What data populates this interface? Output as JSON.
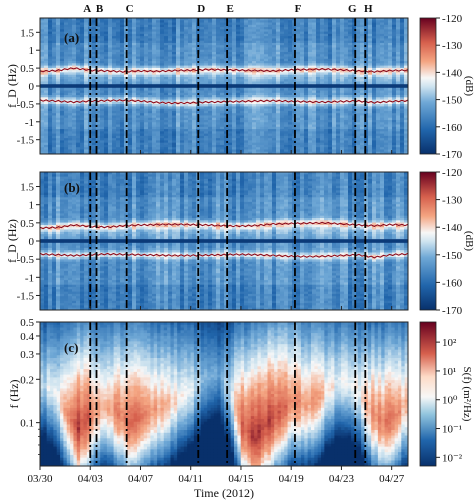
{
  "chart_data": [
    {
      "type": "heatmap",
      "panel_label": "(a)",
      "ylabel": "f_D (Hz)",
      "ylim": [
        -1.9,
        1.9
      ],
      "y_ticks": [
        "1.5",
        "1",
        "0.5",
        "0",
        "-0.5",
        "-1",
        "-1.5"
      ],
      "y_tick_values": [
        1.5,
        1,
        0.5,
        0,
        -0.5,
        -1,
        -1.5
      ],
      "colorbar": {
        "label": "(dB)",
        "range": [
          -170,
          -120
        ],
        "ticks": [
          "-120",
          "-130",
          "-140",
          "-150",
          "-160",
          "-170"
        ],
        "tick_values": [
          -120,
          -130,
          -140,
          -150,
          -160,
          -170
        ]
      },
      "bragg_positive_trace_hz": [
        0.41,
        0.43,
        0.5,
        0.44,
        0.42,
        0.4,
        0.42,
        0.41,
        0.43,
        0.44,
        0.46,
        0.45,
        0.44,
        0.43,
        0.42,
        0.45,
        0.46,
        0.47,
        0.45,
        0.42,
        0.4,
        0.43,
        0.44
      ],
      "bragg_negative_trace_hz": [
        -0.4,
        -0.42,
        -0.45,
        -0.42,
        -0.41,
        -0.4,
        -0.42,
        -0.46,
        -0.48,
        -0.47,
        -0.45,
        -0.44,
        -0.43,
        -0.42,
        -0.41,
        -0.43,
        -0.44,
        -0.45,
        -0.43,
        -0.42,
        -0.46,
        -0.43,
        -0.41
      ]
    },
    {
      "type": "heatmap",
      "panel_label": "(b)",
      "ylabel": "f_D (Hz)",
      "ylim": [
        -1.9,
        1.9
      ],
      "y_ticks": [
        "1.5",
        "1",
        "0.5",
        "0",
        "-0.5",
        "-1",
        "-1.5"
      ],
      "y_tick_values": [
        1.5,
        1,
        0.5,
        0,
        -0.5,
        -1,
        -1.5
      ],
      "colorbar": {
        "label": "(dB)",
        "range": [
          -170,
          -120
        ],
        "ticks": [
          "-120",
          "-130",
          "-140",
          "-150",
          "-160",
          "-170"
        ],
        "tick_values": [
          -120,
          -130,
          -140,
          -150,
          -160,
          -170
        ]
      },
      "bragg_positive_trace_hz": [
        0.36,
        0.37,
        0.44,
        0.4,
        0.38,
        0.42,
        0.44,
        0.45,
        0.46,
        0.45,
        0.44,
        0.42,
        0.41,
        0.43,
        0.47,
        0.48,
        0.49,
        0.5,
        0.47,
        0.44,
        0.42,
        0.45,
        0.44
      ],
      "bragg_negative_trace_hz": [
        -0.36,
        -0.38,
        -0.4,
        -0.38,
        -0.36,
        -0.37,
        -0.38,
        -0.39,
        -0.4,
        -0.4,
        -0.39,
        -0.38,
        -0.37,
        -0.38,
        -0.4,
        -0.42,
        -0.43,
        -0.42,
        -0.4,
        -0.38,
        -0.45,
        -0.38,
        -0.36
      ]
    },
    {
      "type": "heatmap",
      "panel_label": "(c)",
      "ylabel": "f (Hz)",
      "y_scale": "log",
      "ylim": [
        0.05,
        0.5
      ],
      "y_ticks": [
        "0.5",
        "0.4",
        "0.3",
        "0.2",
        "0.1"
      ],
      "y_tick_values": [
        0.5,
        0.4,
        0.3,
        0.2,
        0.1
      ],
      "xlabel": "Time (2012)",
      "x_ticks": [
        "03/30",
        "04/03",
        "04/07",
        "04/11",
        "04/15",
        "04/19",
        "04/23",
        "04/27"
      ],
      "x_tick_days": [
        0,
        4,
        8,
        12,
        16,
        20,
        24,
        28
      ],
      "xlim_days": [
        0,
        29.3
      ],
      "colorbar": {
        "label": "S(f) (m²/Hz)",
        "scale": "log",
        "range": [
          0.005,
          500
        ],
        "ticks": [
          "10²",
          "10¹",
          "10⁰",
          "10⁻¹",
          "10⁻²"
        ],
        "tick_values": [
          100,
          10,
          1,
          0.1,
          0.01
        ]
      },
      "peak_frequency_trace_hz": [
        0.19,
        0.17,
        0.12,
        0.09,
        0.11,
        0.13,
        0.12,
        0.1,
        0.11,
        0.12,
        0.13,
        0.15,
        0.17,
        0.2,
        0.22,
        0.16,
        0.09,
        0.08,
        0.1,
        0.12,
        0.14,
        0.13,
        0.15,
        0.18,
        0.2,
        0.17,
        0.12,
        0.1,
        0.11,
        0.14
      ],
      "peak_log_energy": [
        0.0,
        0.3,
        1.2,
        2.2,
        1.6,
        1.0,
        1.4,
        1.8,
        1.5,
        1.1,
        0.9,
        0.6,
        0.3,
        -0.3,
        -0.6,
        0.2,
        1.8,
        2.1,
        2.0,
        1.7,
        1.3,
        1.2,
        1.0,
        0.6,
        0.3,
        0.5,
        1.2,
        1.6,
        1.4,
        0.9
      ]
    }
  ],
  "events": {
    "labels": [
      "A",
      "B",
      "C",
      "D",
      "E",
      "F",
      "G",
      "H"
    ],
    "days": [
      4.0,
      4.5,
      6.9,
      12.6,
      14.9,
      20.3,
      25.1,
      25.9
    ]
  }
}
